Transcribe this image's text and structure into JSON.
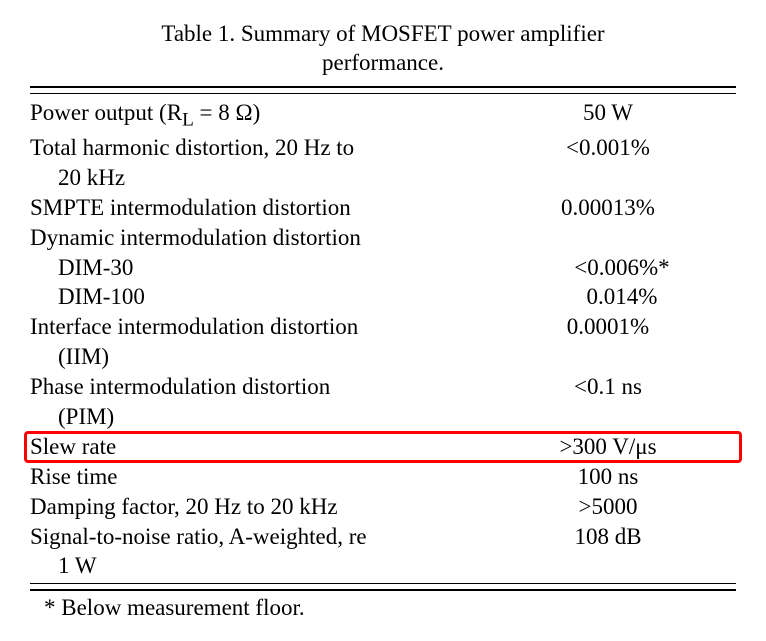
{
  "caption_line1": "Table 1.  Summary of MOSFET power amplifier",
  "caption_line2": "performance.",
  "rows": [
    {
      "param": "Power output (R",
      "sub": "L",
      "param_after": "  =  8 Ω)",
      "value": "50 W",
      "indent": false,
      "highlight": false
    },
    {
      "param": "Total harmonic distortion, 20 Hz to",
      "cont": "20 kHz",
      "value": "<0.001%",
      "indent": false,
      "highlight": false
    },
    {
      "param": "SMPTE intermodulation distortion",
      "value": "0.00013%",
      "indent": false,
      "highlight": false
    },
    {
      "param": "Dynamic intermodulation distortion",
      "value": "",
      "indent": false,
      "highlight": false
    },
    {
      "param": "DIM-30",
      "value": "<0.006%*",
      "indent": true,
      "highlight": false
    },
    {
      "param": "DIM-100",
      "value": "0.014%",
      "indent": true,
      "highlight": false
    },
    {
      "param": "Interface intermodulation distortion",
      "cont": "(IIM)",
      "value": "0.0001%",
      "indent": false,
      "highlight": false
    },
    {
      "param": "Phase intermodulation distortion",
      "cont": "(PIM)",
      "value": "<0.1 ns",
      "indent": false,
      "highlight": false
    },
    {
      "param": "Slew rate",
      "value": ">300 V/μs",
      "indent": false,
      "highlight": true
    },
    {
      "param": "Rise time",
      "value": "100 ns",
      "indent": false,
      "highlight": false
    },
    {
      "param": "Damping factor, 20 Hz to 20 kHz",
      "value": ">5000",
      "indent": false,
      "highlight": false
    },
    {
      "param": "Signal-to-noise ratio, A-weighted, re",
      "cont": "1 W",
      "value": "108 dB",
      "indent": false,
      "highlight": false
    }
  ],
  "footnote": "* Below measurement floor.",
  "colors": {
    "text": "#000000",
    "background": "#ffffff",
    "highlight_border": "#ff0000"
  },
  "typography": {
    "font_family": "Times New Roman",
    "body_fontsize_pt": 17
  }
}
